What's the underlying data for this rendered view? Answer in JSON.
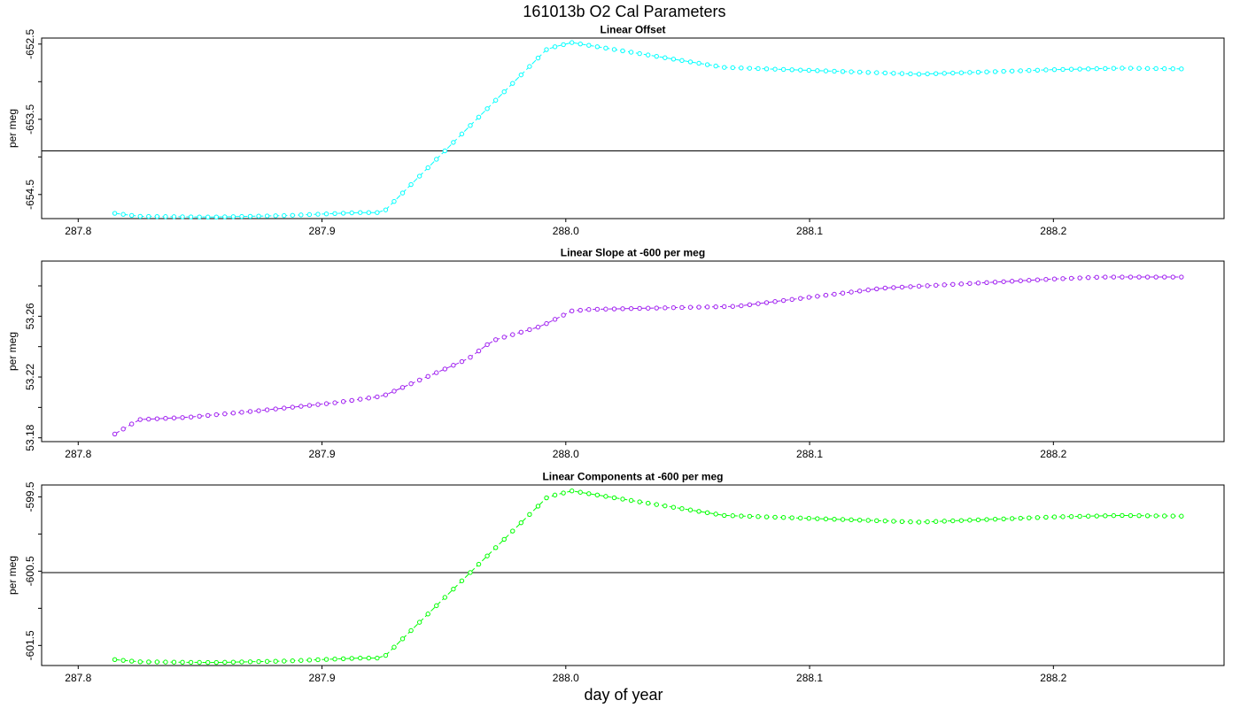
{
  "figure": {
    "title": "161013b   O2 Cal Parameters",
    "xlabel": "day of year"
  },
  "chart_data": [
    {
      "type": "line",
      "title": "Linear Offset",
      "ylabel": "per meg",
      "color": "#00ffff",
      "xlim": [
        287.785,
        288.27
      ],
      "ylim": [
        -654.82,
        -652.42
      ],
      "xticks": [
        "287.8",
        "287.9",
        "288.0",
        "288.1",
        "288.2"
      ],
      "yticks": [
        "-652.5",
        "-653.5",
        "-654.5"
      ],
      "hline": -653.92,
      "keypoints": [
        [
          287.815,
          -654.75
        ],
        [
          287.825,
          -654.79
        ],
        [
          287.855,
          -654.8
        ],
        [
          287.885,
          -654.78
        ],
        [
          287.915,
          -654.74
        ],
        [
          287.925,
          -654.74
        ],
        [
          287.9925,
          -652.56
        ],
        [
          288.0025,
          -652.48
        ],
        [
          288.065,
          -652.81
        ],
        [
          288.145,
          -652.9
        ],
        [
          288.2,
          -652.84
        ],
        [
          288.228,
          -652.82
        ],
        [
          288.253,
          -652.83
        ]
      ]
    },
    {
      "type": "line",
      "title": "Linear Slope at -600 per meg",
      "ylabel": "per meg",
      "color": "#a020f0",
      "xlim": [
        287.785,
        288.27
      ],
      "ylim": [
        53.1775,
        53.2963
      ],
      "xticks": [
        "287.8",
        "287.9",
        "288.0",
        "288.1",
        "288.2"
      ],
      "yticks": [
        "53.18",
        "53.22",
        "53.26"
      ],
      "keypoints": [
        [
          287.815,
          53.1825
        ],
        [
          287.825,
          53.192
        ],
        [
          287.845,
          53.1935
        ],
        [
          287.875,
          53.198
        ],
        [
          287.905,
          53.203
        ],
        [
          287.925,
          53.2075
        ],
        [
          287.96,
          53.232
        ],
        [
          287.97,
          53.244
        ],
        [
          287.99,
          53.2535
        ],
        [
          288.0025,
          53.2635
        ],
        [
          288.01,
          53.2645
        ],
        [
          288.07,
          53.2665
        ],
        [
          288.1,
          53.2725
        ],
        [
          288.13,
          53.2785
        ],
        [
          288.2,
          53.2845
        ],
        [
          288.22,
          53.2858
        ],
        [
          288.253,
          53.2858
        ]
      ]
    },
    {
      "type": "line",
      "title": "Linear Components at -600 per meg",
      "ylabel": "per meg",
      "color": "#00ff00",
      "xlim": [
        287.785,
        288.27
      ],
      "ylim": [
        -601.77,
        -599.34
      ],
      "xticks": [
        "287.8",
        "287.9",
        "288.0",
        "288.1",
        "288.2"
      ],
      "yticks": [
        "-599.5",
        "-600.5",
        "-601.5"
      ],
      "hline": -600.52,
      "keypoints": [
        [
          287.815,
          -601.69
        ],
        [
          287.825,
          -601.72
        ],
        [
          287.855,
          -601.73
        ],
        [
          287.885,
          -601.71
        ],
        [
          287.915,
          -601.67
        ],
        [
          287.925,
          -601.67
        ],
        [
          287.9925,
          -599.5
        ],
        [
          288.0025,
          -599.42
        ],
        [
          288.065,
          -599.75
        ],
        [
          288.145,
          -599.84
        ],
        [
          288.2,
          -599.77
        ],
        [
          288.228,
          -599.75
        ],
        [
          288.253,
          -599.76
        ]
      ]
    }
  ]
}
